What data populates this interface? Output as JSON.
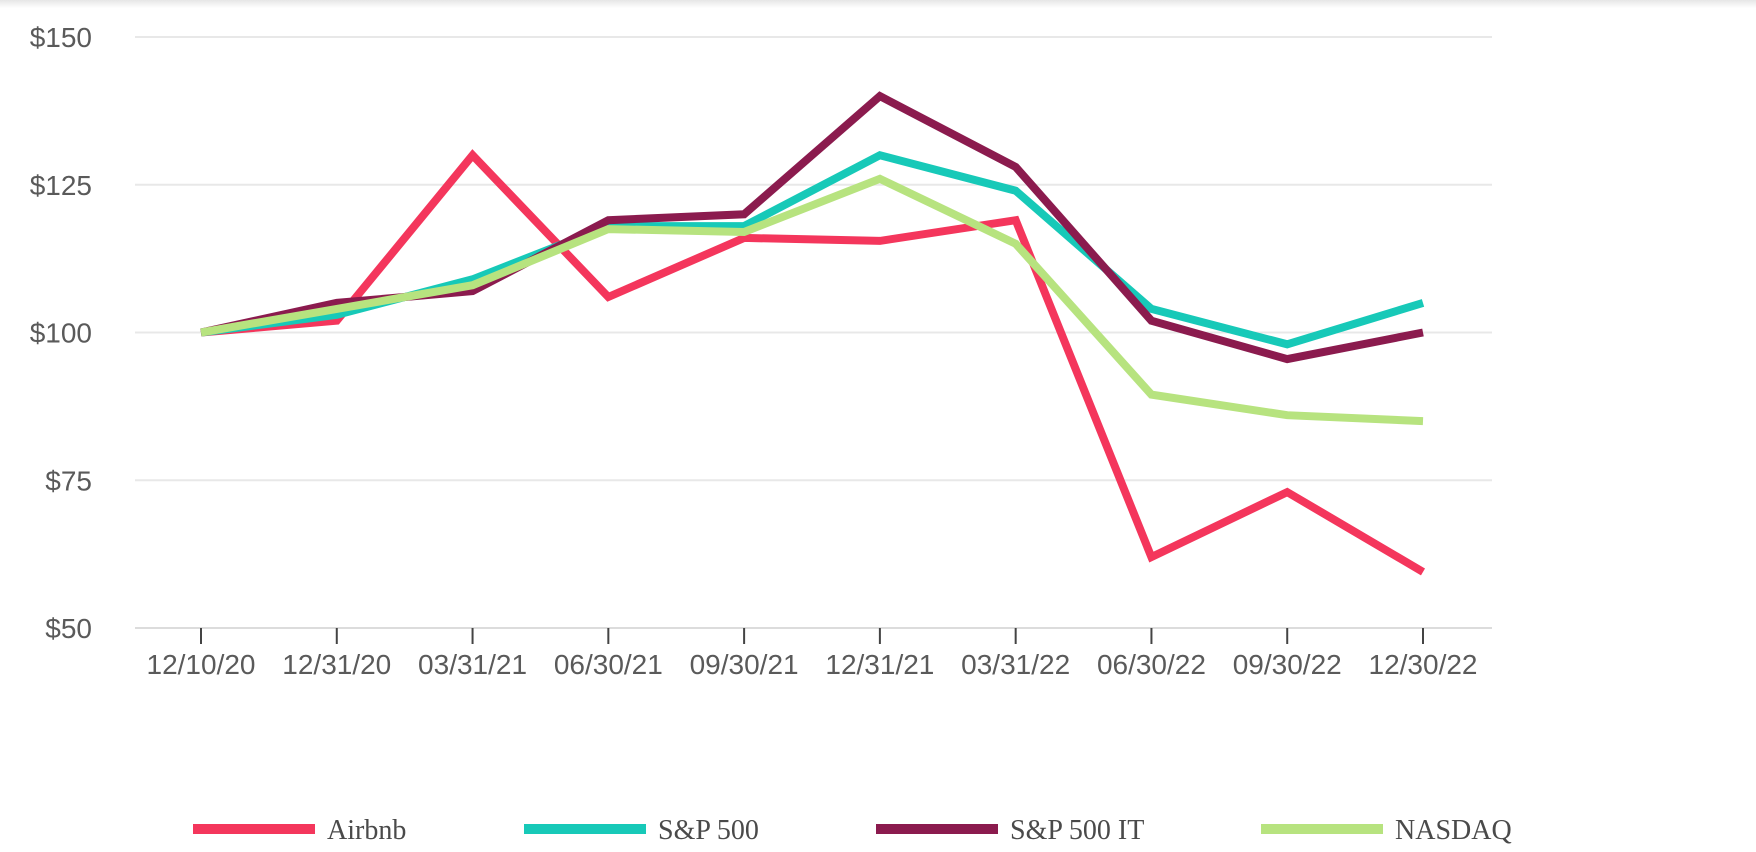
{
  "chart_data": {
    "type": "line",
    "title": "",
    "xlabel": "",
    "ylabel": "",
    "categories": [
      "12/10/20",
      "12/31/20",
      "03/31/21",
      "06/30/21",
      "09/30/21",
      "12/31/21",
      "03/31/22",
      "06/30/22",
      "09/30/22",
      "12/30/22"
    ],
    "y_ticks": [
      "$50",
      "$75",
      "$100",
      "$125",
      "$150"
    ],
    "y_tick_values": [
      50,
      75,
      100,
      125,
      150
    ],
    "ylim": [
      50,
      150
    ],
    "grid": true,
    "legend_position": "bottom",
    "series": [
      {
        "name": "Airbnb",
        "color": "#f4365c",
        "values": [
          100,
          102,
          130,
          106,
          116,
          115.5,
          119,
          62,
          73,
          59.5
        ]
      },
      {
        "name": "S&P 500",
        "color": "#17c9b8",
        "values": [
          100,
          103,
          109,
          118,
          118,
          130,
          124,
          104,
          98,
          105
        ]
      },
      {
        "name": "S&P 500 IT",
        "color": "#8b1b4e",
        "values": [
          100,
          105,
          107,
          119,
          120,
          140,
          128,
          102,
          95.5,
          100
        ]
      },
      {
        "name": "NASDAQ",
        "color": "#b7e37f",
        "values": [
          100,
          104,
          108,
          117.5,
          117,
          126,
          115,
          89.5,
          86,
          85
        ]
      }
    ]
  }
}
